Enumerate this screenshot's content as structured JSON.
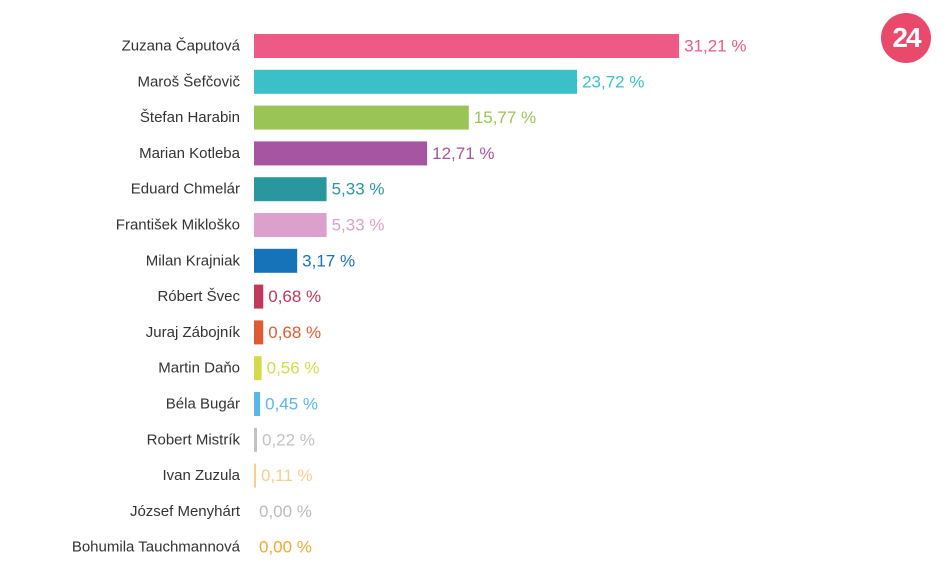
{
  "logo": {
    "text": "24",
    "color": "#e94a6c"
  },
  "chart_data": {
    "type": "bar",
    "orientation": "horizontal",
    "categories": [
      "Zuzana Čaputová",
      "Maroš Šefčovič",
      "Štefan Harabin",
      "Marian Kotleba",
      "Eduard Chmelár",
      "František Mikloško",
      "Milan Krajniak",
      "Róbert Švec",
      "Juraj Zábojník",
      "Martin Daňo",
      "Béla Bugár",
      "Robert Mistrík",
      "Ivan Zuzula",
      "József Menyhárt",
      "Bohumila Tauchmannová"
    ],
    "values": [
      31.21,
      23.72,
      15.77,
      12.71,
      5.33,
      5.33,
      3.17,
      0.68,
      0.68,
      0.56,
      0.45,
      0.22,
      0.11,
      0.0,
      0.0
    ],
    "value_labels": [
      "31,21 %",
      "23,72 %",
      "15,77 %",
      "12,71 %",
      "5,33 %",
      "5,33 %",
      "3,17 %",
      "0,68 %",
      "0,68 %",
      "0,56 %",
      "0,45 %",
      "0,22 %",
      "0,11 %",
      "0,00 %",
      "0,00 %"
    ],
    "colors": [
      "#ec5a85",
      "#3bc0ca",
      "#9ac456",
      "#a655a0",
      "#2a979e",
      "#dba1cc",
      "#1673b9",
      "#c0385a",
      "#e05b34",
      "#d6d94a",
      "#5ab7e8",
      "#c2c2c2",
      "#f7ce8f",
      "#bbbbbb",
      "#f0a832"
    ],
    "grid": false,
    "legend": "none"
  }
}
